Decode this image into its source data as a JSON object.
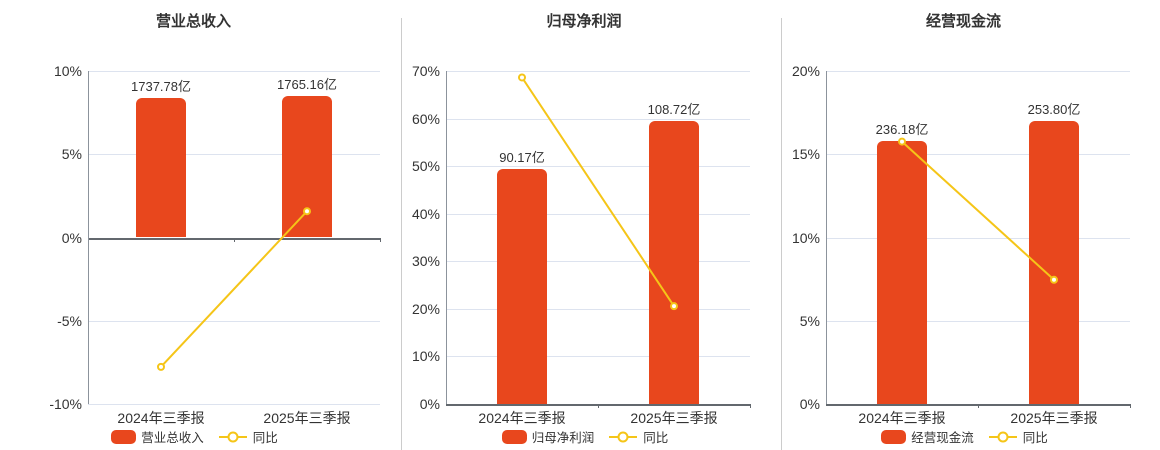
{
  "colors": {
    "bar": "#E8471D",
    "line": "#F5C518",
    "grid": "#DDE3EF",
    "axis_dark": "#63686E",
    "axis_light": "#8C939C",
    "divider": "#CCCCCC",
    "text": "#333333"
  },
  "chart_data": [
    {
      "type": "bar",
      "title": "营业总收入",
      "categories": [
        "2024年三季报",
        "2025年三季报"
      ],
      "series": [
        {
          "name": "营业总收入",
          "type": "bar",
          "unit": "亿",
          "values": [
            1737.78,
            1765.16
          ],
          "value_labels": [
            "1737.78亿",
            "1765.16亿"
          ]
        },
        {
          "name": "同比",
          "type": "line",
          "unit": "%",
          "values": [
            -7.77,
            1.58
          ]
        }
      ],
      "y_axis": {
        "min": -10,
        "max": 10,
        "step": 5,
        "suffix": "%"
      },
      "legend_position": "bottom",
      "grid": true
    },
    {
      "type": "bar",
      "title": "归母净利润",
      "categories": [
        "2024年三季报",
        "2025年三季报"
      ],
      "series": [
        {
          "name": "归母净利润",
          "type": "bar",
          "unit": "亿",
          "values": [
            90.17,
            108.72
          ],
          "value_labels": [
            "90.17亿",
            "108.72亿"
          ]
        },
        {
          "name": "同比",
          "type": "line",
          "unit": "%",
          "values": [
            68.64,
            20.57
          ]
        }
      ],
      "y_axis": {
        "min": 0,
        "max": 70,
        "step": 10,
        "suffix": "%"
      },
      "legend_position": "bottom",
      "grid": true
    },
    {
      "type": "bar",
      "title": "经营现金流",
      "categories": [
        "2024年三季报",
        "2025年三季报"
      ],
      "series": [
        {
          "name": "经营现金流",
          "type": "bar",
          "unit": "亿",
          "values": [
            236.18,
            253.8
          ],
          "value_labels": [
            "236.18亿",
            "253.80亿"
          ]
        },
        {
          "name": "同比",
          "type": "line",
          "unit": "%",
          "values": [
            15.76,
            7.46
          ]
        }
      ],
      "y_axis": {
        "min": 0,
        "max": 20,
        "step": 5,
        "suffix": "%"
      },
      "legend_position": "bottom",
      "grid": true
    }
  ]
}
